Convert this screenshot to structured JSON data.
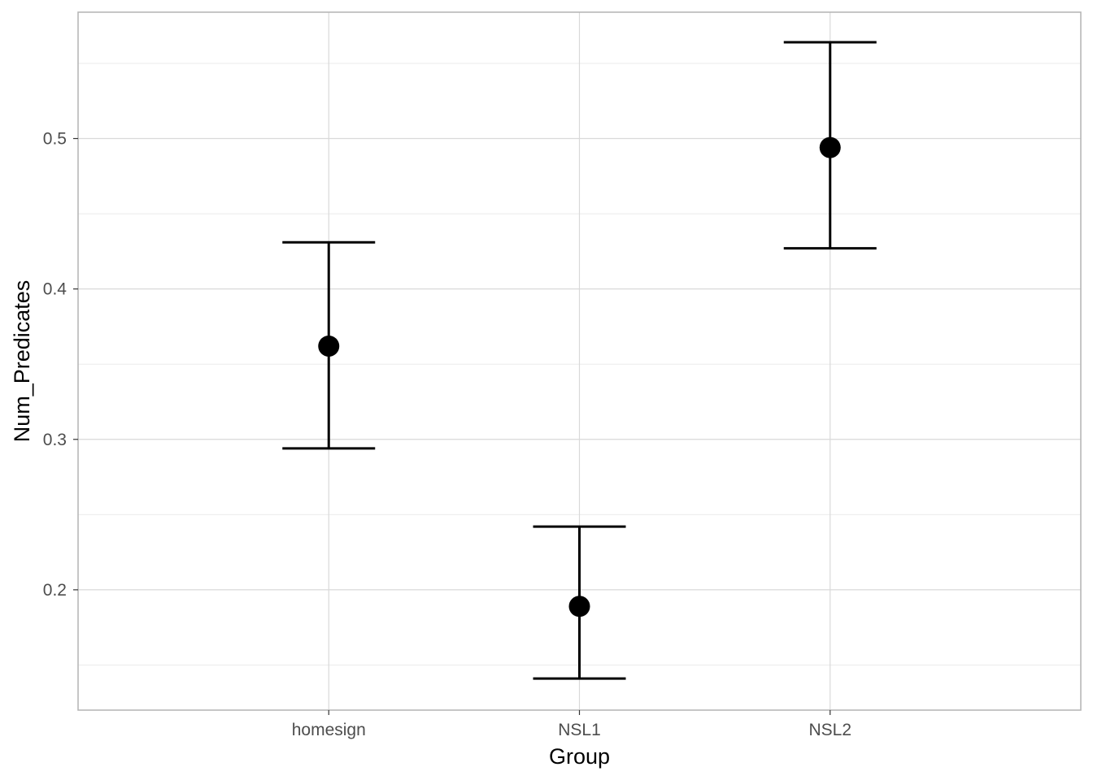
{
  "chart_data": {
    "type": "scatter",
    "title": "",
    "xlabel": "Group",
    "ylabel": "Num_Predicates",
    "categories": [
      "homesign",
      "NSL1",
      "NSL2"
    ],
    "points": [
      {
        "category": "homesign",
        "mean": 0.362,
        "lower": 0.294,
        "upper": 0.431
      },
      {
        "category": "NSL1",
        "mean": 0.189,
        "lower": 0.141,
        "upper": 0.242
      },
      {
        "category": "NSL2",
        "mean": 0.494,
        "lower": 0.427,
        "upper": 0.564
      }
    ],
    "ylim": [
      0.12,
      0.584
    ],
    "y_ticks": [
      {
        "value": 0.2,
        "label": "0.2"
      },
      {
        "value": 0.3,
        "label": "0.3"
      },
      {
        "value": 0.4,
        "label": "0.4"
      },
      {
        "value": 0.5,
        "label": "0.5"
      }
    ],
    "y_minor_ticks": [
      0.15,
      0.25,
      0.35,
      0.45,
      0.55
    ],
    "grid": true,
    "legend": "none",
    "colors": {
      "point": "#000000",
      "errorbar": "#000000",
      "grid_major": "#d9d9d9",
      "grid_minor": "#ebebeb",
      "panel_border": "#b3b3b3",
      "tick_text": "#4d4d4d",
      "axis_title": "#000000"
    }
  }
}
